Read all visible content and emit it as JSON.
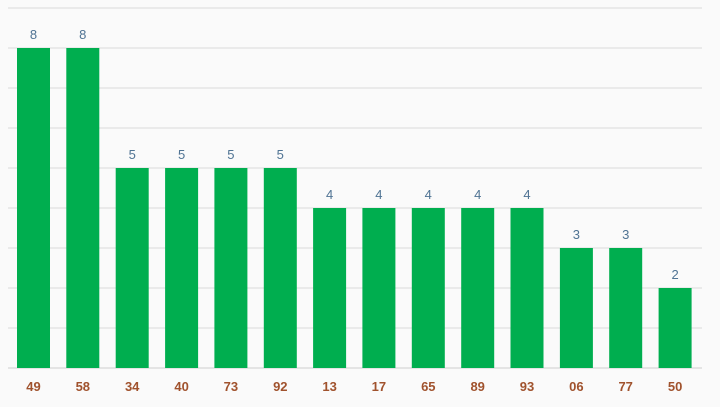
{
  "chart_data": {
    "type": "bar",
    "title": "",
    "xlabel": "",
    "ylabel": "",
    "categories": [
      "49",
      "58",
      "34",
      "40",
      "73",
      "92",
      "13",
      "17",
      "65",
      "89",
      "93",
      "06",
      "77",
      "50"
    ],
    "values": [
      8,
      8,
      5,
      5,
      5,
      5,
      4,
      4,
      4,
      4,
      4,
      3,
      3,
      2
    ],
    "ylim": [
      0,
      9
    ],
    "grid": true,
    "bar_color": "#00ae4f",
    "value_label_color": "#4f7393",
    "tick_label_color": "#a0522d",
    "gridline_color": "#d9d9d9"
  }
}
